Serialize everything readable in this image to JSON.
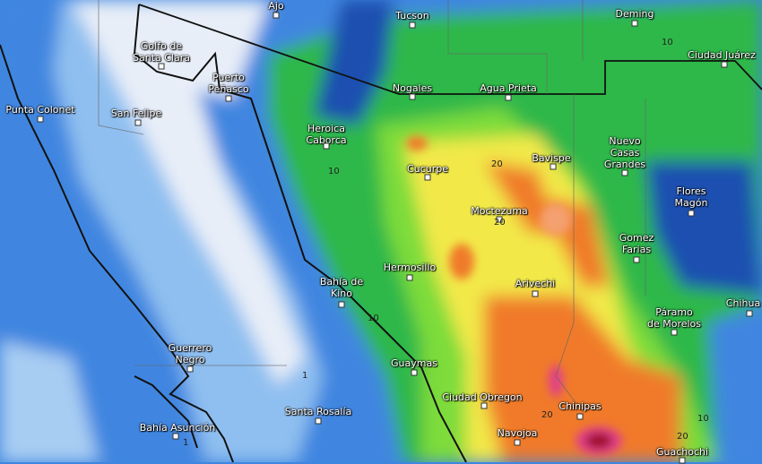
{
  "map": {
    "type": "precipitation accumulation map",
    "colors": {
      "very_light": "#e8eef8",
      "light_blue": "#8fbff0",
      "blue": "#3f86e0",
      "dark_blue": "#1f4fb0",
      "green": "#2fb84a",
      "dark_green": "#1a8a38",
      "lime": "#7ddc3a",
      "yellow": "#f2e94a",
      "orange": "#f07a2a",
      "light_orange": "#f5a070",
      "magenta": "#e0408a",
      "dark_red": "#a0102a"
    },
    "places": [
      {
        "name": "Ajo"
      },
      {
        "name": "Tucson"
      },
      {
        "name": "Deming"
      },
      {
        "name": "Golfo de Santa Clara"
      },
      {
        "name": "Ciudad Juárez"
      },
      {
        "name": "Puerto Peñasco"
      },
      {
        "name": "Nogales"
      },
      {
        "name": "Agua Prieta"
      },
      {
        "name": "Punta Colonet"
      },
      {
        "name": "San Felipe"
      },
      {
        "name": "Heroica Caborca"
      },
      {
        "name": "Nuevo Casas Grandes"
      },
      {
        "name": "Cucurpe"
      },
      {
        "name": "Bavispe"
      },
      {
        "name": "Flores Magón"
      },
      {
        "name": "Moctezuma"
      },
      {
        "name": "Gomez Farias"
      },
      {
        "name": "Hermosillo"
      },
      {
        "name": "Bahía de Kino"
      },
      {
        "name": "Arivechi"
      },
      {
        "name": "Chihua"
      },
      {
        "name": "Páramo de Morelos"
      },
      {
        "name": "Guerrero Negro"
      },
      {
        "name": "Guaymas"
      },
      {
        "name": "Ciudad Obregon"
      },
      {
        "name": "Chinipas"
      },
      {
        "name": "Santa Rosalía"
      },
      {
        "name": "Bahía Asunción"
      },
      {
        "name": "Navojoa"
      },
      {
        "name": "Guachochi"
      }
    ],
    "contour_labels": [
      "10",
      "10",
      "20",
      "20",
      "10",
      "20",
      "10",
      "20",
      "1",
      "1"
    ]
  }
}
